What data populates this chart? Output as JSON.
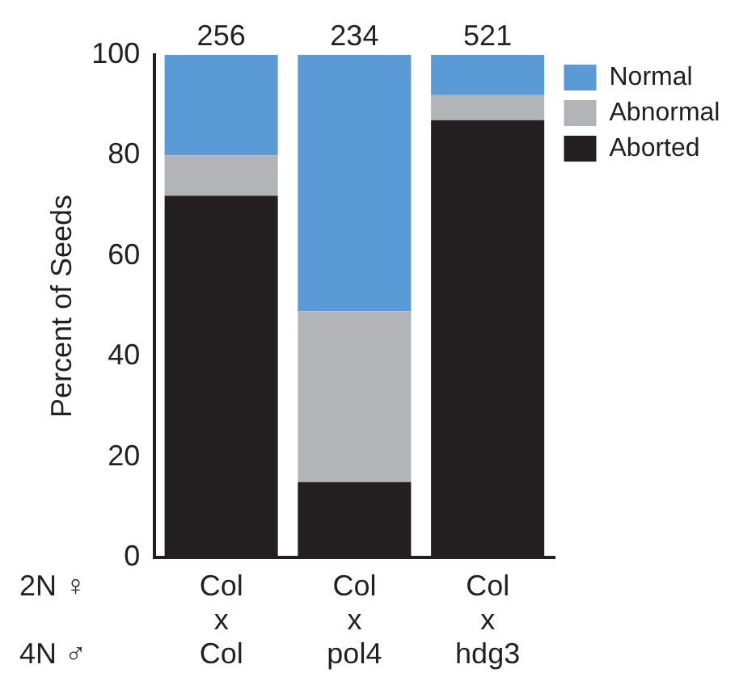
{
  "chart_data": {
    "type": "bar",
    "stacked": true,
    "ylabel": "Percent of Seeds",
    "categories": [
      "Col\nx\nCol",
      "Col\nx\npol4",
      "Col\nx\nhdg3"
    ],
    "series": [
      {
        "name": "Aborted",
        "color": "#231f20",
        "values": [
          72,
          15,
          87
        ]
      },
      {
        "name": "Abnormal",
        "color": "#b3b4b7",
        "values": [
          8,
          34,
          5
        ]
      },
      {
        "name": "Normal",
        "color": "#5b9bd5",
        "values": [
          20,
          51,
          8
        ]
      }
    ],
    "annotations": [
      "2N ♀",
      "4N ♂",
      {
        "text": "256",
        "x": "Col\nx\nCol",
        "y": 100
      },
      {
        "text": "234",
        "x": "Col\nx\npol4",
        "y": 100
      },
      {
        "text": "521",
        "x": "Col\nx\nhdg3",
        "y": 100
      }
    ],
    "ylim": [
      0,
      100
    ],
    "yticks": [
      0,
      20,
      40,
      60,
      80,
      100
    ],
    "grid": false,
    "legend": "top right"
  }
}
